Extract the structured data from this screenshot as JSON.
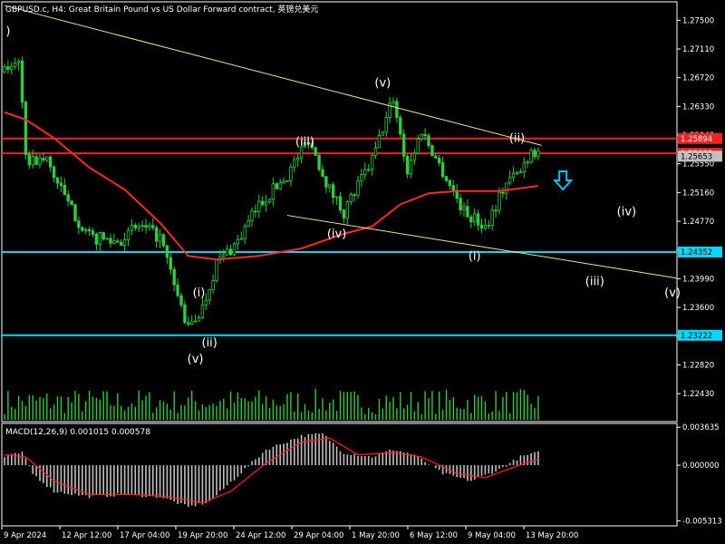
{
  "window": {
    "title": "GBPUSD.c, H4:  Great Britain Pound vs US Dollar Forward contract, 英镑兑美元"
  },
  "colors": {
    "background": "#000000",
    "frame": "#ffffff",
    "candle": "#2ecc40",
    "ma_line": "#ff2a2a",
    "trendline": "#e8e890",
    "resistance": "#ff2020",
    "support": "#00d8ff",
    "macd_signal": "#ff2020",
    "macd_hist": "#c0c0c0",
    "arrow": "#00c8ff"
  },
  "chart_data": {
    "type": "candlestick",
    "symbol": "GBPUSD.c",
    "timeframe": "H4",
    "price_axis": {
      "ylim": [
        1.2205,
        1.2775
      ],
      "ticks": [
        "1.27500",
        "1.27110",
        "1.26720",
        "1.26330",
        "1.25940",
        "1.25550",
        "1.25160",
        "1.24770",
        "1.24380",
        "1.23990",
        "1.23600",
        "1.23210",
        "1.22820",
        "1.22430"
      ]
    },
    "time_axis": {
      "ticks": [
        "9 Apr 2024",
        "12 Apr 12:00",
        "17 Apr 04:00",
        "19 Apr 20:00",
        "24 Apr 12:00",
        "29 Apr 04:00",
        "1 May 20:00",
        "6 May 12:00",
        "9 May 04:00",
        "13 May 20:00"
      ]
    },
    "price_path": [
      {
        "bar": 0,
        "price": 1.268
      },
      {
        "bar": 4,
        "price": 1.27
      },
      {
        "bar": 6,
        "price": 1.256
      },
      {
        "bar": 12,
        "price": 1.256
      },
      {
        "bar": 18,
        "price": 1.25
      },
      {
        "bar": 24,
        "price": 1.2455
      },
      {
        "bar": 32,
        "price": 1.245
      },
      {
        "bar": 38,
        "price": 1.247
      },
      {
        "bar": 44,
        "price": 1.2455
      },
      {
        "bar": 48,
        "price": 1.239
      },
      {
        "bar": 52,
        "price": 1.233
      },
      {
        "bar": 56,
        "price": 1.236
      },
      {
        "bar": 60,
        "price": 1.242
      },
      {
        "bar": 66,
        "price": 1.245
      },
      {
        "bar": 72,
        "price": 1.25
      },
      {
        "bar": 80,
        "price": 1.254
      },
      {
        "bar": 86,
        "price": 1.259
      },
      {
        "bar": 92,
        "price": 1.252
      },
      {
        "bar": 96,
        "price": 1.249
      },
      {
        "bar": 104,
        "price": 1.256
      },
      {
        "bar": 110,
        "price": 1.2645
      },
      {
        "bar": 114,
        "price": 1.2545
      },
      {
        "bar": 118,
        "price": 1.26
      },
      {
        "bar": 124,
        "price": 1.2545
      },
      {
        "bar": 130,
        "price": 1.249
      },
      {
        "bar": 136,
        "price": 1.247
      },
      {
        "bar": 142,
        "price": 1.253
      },
      {
        "bar": 146,
        "price": 1.2545
      },
      {
        "bar": 149,
        "price": 1.2575
      },
      {
        "bar": 151,
        "price": 1.257
      }
    ],
    "moving_average": [
      {
        "bar": 0,
        "price": 1.2625
      },
      {
        "bar": 6,
        "price": 1.2615
      },
      {
        "bar": 14,
        "price": 1.259
      },
      {
        "bar": 24,
        "price": 1.255
      },
      {
        "bar": 34,
        "price": 1.252
      },
      {
        "bar": 44,
        "price": 1.2475
      },
      {
        "bar": 52,
        "price": 1.243
      },
      {
        "bar": 60,
        "price": 1.2425
      },
      {
        "bar": 72,
        "price": 1.243
      },
      {
        "bar": 84,
        "price": 1.244
      },
      {
        "bar": 96,
        "price": 1.246
      },
      {
        "bar": 104,
        "price": 1.247
      },
      {
        "bar": 112,
        "price": 1.25
      },
      {
        "bar": 120,
        "price": 1.2515
      },
      {
        "bar": 128,
        "price": 1.2518
      },
      {
        "bar": 140,
        "price": 1.2518
      },
      {
        "bar": 151,
        "price": 1.2525
      }
    ],
    "price_levels": [
      {
        "label": "1.25894",
        "price": 1.25894,
        "kind": "resistance"
      },
      {
        "label": "1.25693",
        "price": 1.25693,
        "kind": "resistance"
      },
      {
        "label": "1.24352",
        "price": 1.24352,
        "kind": "support"
      },
      {
        "label": "1.23222",
        "price": 1.23222,
        "kind": "support"
      }
    ],
    "current_price": {
      "label": "1.25653",
      "price": 1.25653
    },
    "trendlines": [
      {
        "bar1": 0,
        "price1": 1.277,
        "bar2": 152,
        "price2": 1.258
      },
      {
        "bar1": 80,
        "price1": 1.2485,
        "bar2": 190,
        "price2": 1.24
      }
    ],
    "wave_labels": [
      {
        "text": ")",
        "bar": 1,
        "price": 1.273
      },
      {
        "text": "(v)",
        "bar": 107,
        "price": 1.266
      },
      {
        "text": "(iii)",
        "bar": 85,
        "price": 1.258
      },
      {
        "text": "(iv)",
        "bar": 94,
        "price": 1.2455
      },
      {
        "text": "(ii)",
        "bar": 145,
        "price": 1.2585
      },
      {
        "text": "(iv)",
        "bar": 176,
        "price": 1.2485
      },
      {
        "text": "(i)",
        "bar": 133,
        "price": 1.2425
      },
      {
        "text": "(iii)",
        "bar": 167,
        "price": 1.239
      },
      {
        "text": "(v)",
        "bar": 189,
        "price": 1.2375
      },
      {
        "text": "(i)",
        "bar": 55,
        "price": 1.2375
      },
      {
        "text": "(ii)",
        "bar": 58,
        "price": 1.2307
      },
      {
        "text": "(v)",
        "bar": 54,
        "price": 1.2285
      }
    ],
    "arrow_down": {
      "bar": 158,
      "price": 1.253
    },
    "macd": {
      "label": "MACD(12,26,9) 0.001015 0.000578",
      "ylim": [
        -0.0058,
        0.004
      ],
      "ticks": [
        "0.003635",
        "0.000000",
        "-0.005313"
      ],
      "histogram": [
        {
          "bar": 0,
          "value": 0.0008
        },
        {
          "bar": 5,
          "value": 0.0012
        },
        {
          "bar": 8,
          "value": -0.0008
        },
        {
          "bar": 14,
          "value": -0.0025
        },
        {
          "bar": 24,
          "value": -0.003
        },
        {
          "bar": 34,
          "value": -0.0028
        },
        {
          "bar": 44,
          "value": -0.003
        },
        {
          "bar": 52,
          "value": -0.004
        },
        {
          "bar": 58,
          "value": -0.0035
        },
        {
          "bar": 66,
          "value": -0.001
        },
        {
          "bar": 74,
          "value": 0.0015
        },
        {
          "bar": 84,
          "value": 0.0028
        },
        {
          "bar": 90,
          "value": 0.003
        },
        {
          "bar": 96,
          "value": 0.0012
        },
        {
          "bar": 104,
          "value": 0.0008
        },
        {
          "bar": 110,
          "value": 0.0015
        },
        {
          "bar": 116,
          "value": 0.001
        },
        {
          "bar": 124,
          "value": -0.0008
        },
        {
          "bar": 132,
          "value": -0.0015
        },
        {
          "bar": 140,
          "value": -0.0004
        },
        {
          "bar": 146,
          "value": 0.0008
        },
        {
          "bar": 151,
          "value": 0.0012
        }
      ],
      "signal": [
        {
          "bar": 0,
          "value": 0.001
        },
        {
          "bar": 6,
          "value": 0.0008
        },
        {
          "bar": 14,
          "value": -0.0015
        },
        {
          "bar": 24,
          "value": -0.0028
        },
        {
          "bar": 36,
          "value": -0.0028
        },
        {
          "bar": 46,
          "value": -0.003
        },
        {
          "bar": 56,
          "value": -0.0036
        },
        {
          "bar": 64,
          "value": -0.0025
        },
        {
          "bar": 74,
          "value": 0.0002
        },
        {
          "bar": 84,
          "value": 0.0022
        },
        {
          "bar": 92,
          "value": 0.0026
        },
        {
          "bar": 100,
          "value": 0.001
        },
        {
          "bar": 110,
          "value": 0.0012
        },
        {
          "bar": 118,
          "value": 0.0008
        },
        {
          "bar": 128,
          "value": -0.0008
        },
        {
          "bar": 136,
          "value": -0.0012
        },
        {
          "bar": 144,
          "value": -0.0002
        },
        {
          "bar": 151,
          "value": 0.0006
        }
      ]
    },
    "volume": {
      "ylim": [
        0,
        1
      ]
    }
  }
}
